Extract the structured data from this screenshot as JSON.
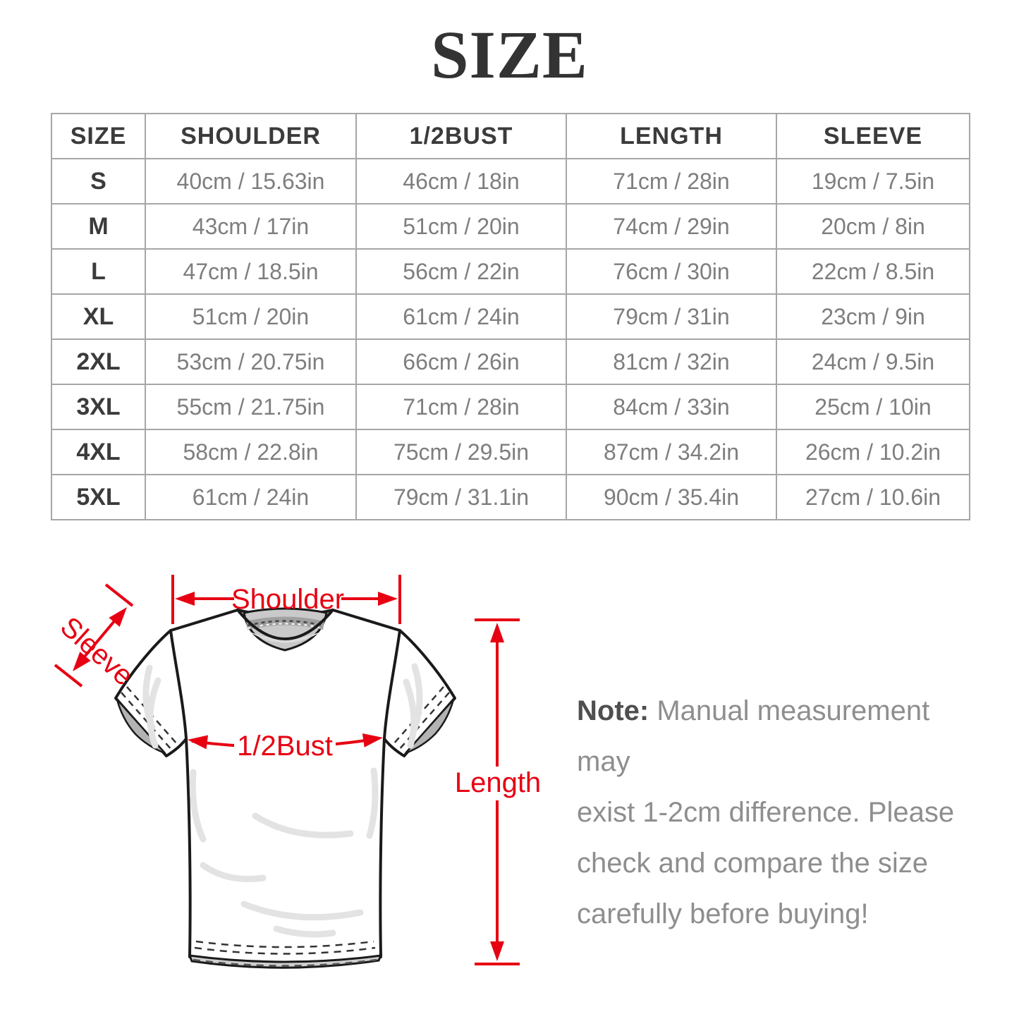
{
  "title": "SIZE",
  "table": {
    "headers": [
      "SIZE",
      "SHOULDER",
      "1/2BUST",
      "LENGTH",
      "SLEEVE"
    ],
    "rows": [
      [
        "S",
        "40cm / 15.63in",
        "46cm / 18in",
        "71cm / 28in",
        "19cm / 7.5in"
      ],
      [
        "M",
        "43cm / 17in",
        "51cm / 20in",
        "74cm / 29in",
        "20cm / 8in"
      ],
      [
        "L",
        "47cm / 18.5in",
        "56cm / 22in",
        "76cm / 30in",
        "22cm / 8.5in"
      ],
      [
        "XL",
        "51cm / 20in",
        "61cm / 24in",
        "79cm / 31in",
        "23cm / 9in"
      ],
      [
        "2XL",
        "53cm / 20.75in",
        "66cm / 26in",
        "81cm / 32in",
        "24cm / 9.5in"
      ],
      [
        "3XL",
        "55cm / 21.75in",
        "71cm / 28in",
        "84cm / 33in",
        "25cm / 10in"
      ],
      [
        "4XL",
        "58cm / 22.8in",
        "75cm / 29.5in",
        "87cm / 34.2in",
        "26cm / 10.2in"
      ],
      [
        "5XL",
        "61cm / 24in",
        "79cm / 31.1in",
        "90cm / 35.4in",
        "27cm / 10.6in"
      ]
    ]
  },
  "diagram": {
    "shoulder_label": "Shoulder",
    "sleeve_label": "Sleeve",
    "bust_label": "1/2Bust",
    "length_label": "Length"
  },
  "note": {
    "prefix": "Note:",
    "body_lines": [
      "Manual measurement may",
      "exist 1-2cm difference. Please",
      "check and compare the size",
      "carefully before buying!"
    ]
  },
  "colors": {
    "accent_red": "#e60012",
    "title_text": "#333333",
    "header_text": "#3b3b3b",
    "value_text": "#7e7e7e",
    "table_border": "#a6a6a6",
    "note_title": "#4f4f4f",
    "note_text": "#8e8e8e"
  }
}
